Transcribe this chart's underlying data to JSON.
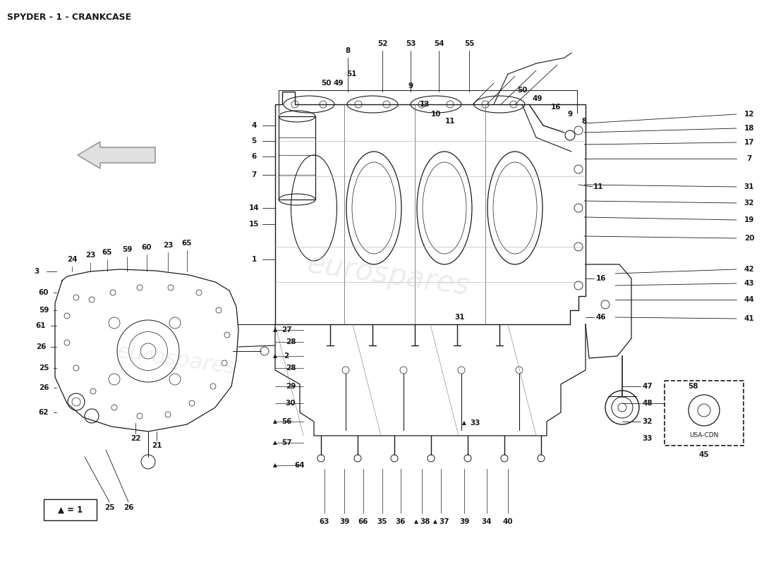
{
  "title": "SPYDER - 1 - CRANKCASE",
  "title_fontsize": 9,
  "title_fontweight": "bold",
  "bg_color": "#ffffff",
  "fig_width": 11.0,
  "fig_height": 8.0,
  "dpi": 100,
  "watermark": "eurospares",
  "legend_text": "▲ = 1",
  "usa_cdn_label": "USA-CDN",
  "line_color": "#1a1a1a"
}
